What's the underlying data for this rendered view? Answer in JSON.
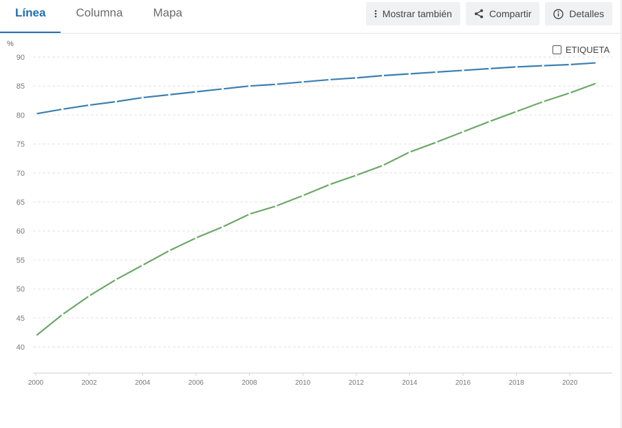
{
  "tabs": [
    {
      "label": "Línea",
      "active": true
    },
    {
      "label": "Columna",
      "active": false
    },
    {
      "label": "Mapa",
      "active": false
    }
  ],
  "toolbar": {
    "show_also": {
      "label": "Mostrar también",
      "icon": "vertical-dots-icon"
    },
    "share": {
      "label": "Compartir",
      "icon": "share-icon"
    },
    "details": {
      "label": "Detalles",
      "icon": "info-icon"
    }
  },
  "label_toggle": {
    "label": "ETIQUETA",
    "checked": false
  },
  "colors": {
    "accent": "#1f6fb2",
    "series_1": "#3a7fb0",
    "series_2": "#6aa866",
    "grid": "#e2e2e2"
  },
  "chart_data": {
    "type": "line",
    "ylabel": "%",
    "xlabel": "",
    "ylim": [
      35,
      90
    ],
    "yticks": [
      40,
      45,
      50,
      55,
      60,
      65,
      70,
      75,
      80,
      85,
      90
    ],
    "xlim": [
      2000,
      2021
    ],
    "xticks": [
      2000,
      2002,
      2004,
      2006,
      2008,
      2010,
      2012,
      2014,
      2016,
      2018,
      2020
    ],
    "grid": true,
    "x": [
      2000,
      2001,
      2002,
      2003,
      2004,
      2005,
      2006,
      2007,
      2008,
      2009,
      2010,
      2011,
      2012,
      2013,
      2014,
      2015,
      2016,
      2017,
      2018,
      2019,
      2020,
      2021
    ],
    "series": [
      {
        "color": "#3a7fb0",
        "values": [
          80.2,
          81.0,
          81.7,
          82.3,
          83.0,
          83.5,
          84.0,
          84.5,
          85.0,
          85.3,
          85.7,
          86.1,
          86.4,
          86.8,
          87.1,
          87.4,
          87.7,
          88.0,
          88.3,
          88.5,
          88.7,
          89.0
        ]
      },
      {
        "color": "#6aa866",
        "values": [
          41.9,
          45.6,
          48.8,
          51.6,
          54.1,
          56.6,
          58.8,
          60.7,
          62.9,
          64.3,
          66.1,
          68.0,
          69.6,
          71.3,
          73.6,
          75.3,
          77.1,
          78.9,
          80.6,
          82.3,
          83.8,
          85.5
        ]
      }
    ]
  }
}
